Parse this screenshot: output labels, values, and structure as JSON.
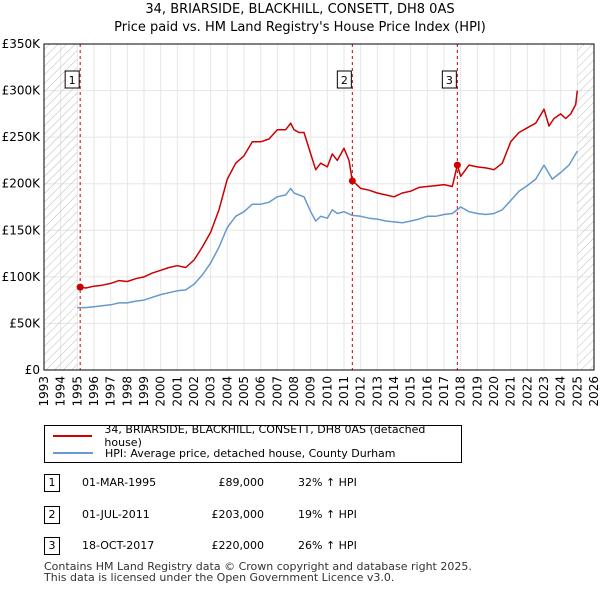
{
  "chart_data": {
    "type": "line",
    "title": "34, BRIARSIDE, BLACKHILL, CONSETT, DH8 0AS",
    "subtitle": "Price paid vs. HM Land Registry's House Price Index (HPI)",
    "xlabel": "",
    "ylabel": "",
    "xlim": [
      1993,
      2026
    ],
    "ylim": [
      0,
      350000
    ],
    "yticks": [
      0,
      50000,
      100000,
      150000,
      200000,
      250000,
      300000,
      350000
    ],
    "ytick_labels": [
      "£0",
      "£50K",
      "£100K",
      "£150K",
      "£200K",
      "£250K",
      "£300K",
      "£350K"
    ],
    "xtick_labels": [
      "1993",
      "1994",
      "1995",
      "1996",
      "1997",
      "1998",
      "1999",
      "2000",
      "2001",
      "2002",
      "2003",
      "2004",
      "2005",
      "2006",
      "2007",
      "2008",
      "2009",
      "2010",
      "2011",
      "2012",
      "2013",
      "2014",
      "2015",
      "2016",
      "2017",
      "2018",
      "2019",
      "2020",
      "2021",
      "2022",
      "2023",
      "2024",
      "2025",
      "2026"
    ],
    "hatch_before": 1995.0,
    "hatch_after": 2025.0,
    "series": [
      {
        "name": "34, BRIARSIDE, BLACKHILL, CONSETT, DH8 0AS (detached house)",
        "color": "#cc0000",
        "x": [
          1995.17,
          1995.5,
          1996.0,
          1996.5,
          1997.0,
          1997.5,
          1998.0,
          1998.5,
          1999.0,
          1999.5,
          2000.0,
          2000.5,
          2001.0,
          2001.5,
          2002.0,
          2002.5,
          2003.0,
          2003.5,
          2004.0,
          2004.5,
          2005.0,
          2005.5,
          2006.0,
          2006.5,
          2007.0,
          2007.5,
          2007.8,
          2008.0,
          2008.3,
          2008.6,
          2009.0,
          2009.3,
          2009.6,
          2010.0,
          2010.3,
          2010.6,
          2011.0,
          2011.3,
          2011.5,
          2011.7,
          2012.0,
          2012.5,
          2013.0,
          2013.5,
          2014.0,
          2014.5,
          2015.0,
          2015.5,
          2016.0,
          2016.5,
          2017.0,
          2017.5,
          2017.8,
          2018.0,
          2018.5,
          2019.0,
          2019.5,
          2020.0,
          2020.5,
          2021.0,
          2021.5,
          2022.0,
          2022.5,
          2023.0,
          2023.3,
          2023.6,
          2024.0,
          2024.3,
          2024.6,
          2024.9,
          2025.0
        ],
        "values": [
          89000,
          88000,
          90000,
          91000,
          93000,
          96000,
          95000,
          98000,
          100000,
          104000,
          107000,
          110000,
          112000,
          110000,
          118000,
          132000,
          148000,
          172000,
          205000,
          222000,
          230000,
          245000,
          245000,
          248000,
          258000,
          258000,
          265000,
          258000,
          255000,
          255000,
          232000,
          215000,
          222000,
          218000,
          232000,
          225000,
          238000,
          225000,
          203000,
          200000,
          195000,
          193000,
          190000,
          188000,
          186000,
          190000,
          192000,
          196000,
          197000,
          198000,
          199000,
          197000,
          220000,
          208000,
          220000,
          218000,
          217000,
          215000,
          222000,
          245000,
          255000,
          260000,
          265000,
          280000,
          262000,
          270000,
          275000,
          270000,
          275000,
          285000,
          300000
        ]
      },
      {
        "name": "HPI: Average price, detached house, County Durham",
        "color": "#6699cc",
        "x": [
          1995.0,
          1995.5,
          1996.0,
          1996.5,
          1997.0,
          1997.5,
          1998.0,
          1998.5,
          1999.0,
          1999.5,
          2000.0,
          2000.5,
          2001.0,
          2001.5,
          2002.0,
          2002.5,
          2003.0,
          2003.5,
          2004.0,
          2004.5,
          2005.0,
          2005.5,
          2006.0,
          2006.5,
          2007.0,
          2007.5,
          2007.8,
          2008.0,
          2008.3,
          2008.6,
          2009.0,
          2009.3,
          2009.6,
          2010.0,
          2010.3,
          2010.6,
          2011.0,
          2011.5,
          2012.0,
          2012.5,
          2013.0,
          2013.5,
          2014.0,
          2014.5,
          2015.0,
          2015.5,
          2016.0,
          2016.5,
          2017.0,
          2017.5,
          2018.0,
          2018.5,
          2019.0,
          2019.5,
          2020.0,
          2020.5,
          2021.0,
          2021.5,
          2022.0,
          2022.5,
          2023.0,
          2023.5,
          2024.0,
          2024.5,
          2025.0
        ],
        "values": [
          67000,
          67000,
          68000,
          69000,
          70000,
          72000,
          72000,
          74000,
          75000,
          78000,
          81000,
          83000,
          85000,
          86000,
          92000,
          102000,
          115000,
          132000,
          153000,
          165000,
          170000,
          178000,
          178000,
          180000,
          186000,
          188000,
          195000,
          190000,
          188000,
          186000,
          170000,
          160000,
          165000,
          163000,
          172000,
          168000,
          170000,
          166000,
          165000,
          163000,
          162000,
          160000,
          159000,
          158000,
          160000,
          162000,
          165000,
          165000,
          167000,
          168000,
          175000,
          170000,
          168000,
          167000,
          168000,
          172000,
          182000,
          192000,
          198000,
          205000,
          220000,
          205000,
          212000,
          220000,
          235000
        ]
      }
    ],
    "annotations": [
      {
        "label": "1",
        "x": 1995.17,
        "value": 89000
      },
      {
        "label": "2",
        "x": 2011.5,
        "value": 203000
      },
      {
        "label": "3",
        "x": 2017.8,
        "value": 220000
      }
    ]
  },
  "legend": {
    "property_label": "34, BRIARSIDE, BLACKHILL, CONSETT, DH8 0AS (detached house)",
    "hpi_label": "HPI: Average price, detached house, County Durham",
    "property_color": "#cc0000",
    "hpi_color": "#6699cc"
  },
  "transactions": [
    {
      "num": "1",
      "date": "01-MAR-1995",
      "price": "£89,000",
      "hpi": "32% ↑ HPI"
    },
    {
      "num": "2",
      "date": "01-JUL-2011",
      "price": "£203,000",
      "hpi": "19% ↑ HPI"
    },
    {
      "num": "3",
      "date": "18-OCT-2017",
      "price": "£220,000",
      "hpi": "26% ↑ HPI"
    }
  ],
  "footer": {
    "line1": "Contains HM Land Registry data © Crown copyright and database right 2025.",
    "line2": "This data is licensed under the Open Government Licence v3.0."
  }
}
